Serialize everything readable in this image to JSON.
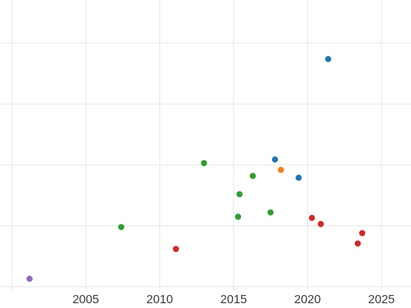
{
  "chart_data": {
    "type": "scatter",
    "title": "",
    "xlabel": "",
    "ylabel": "",
    "background": "#ffffff",
    "grid": true,
    "grid_color": "#e3e3e3",
    "axis_tick_color": "#3d3d3d",
    "legend": "none",
    "x_ticks": [
      2005,
      2010,
      2015,
      2020,
      2025
    ],
    "x_tick_labels": [
      "2005",
      "2010",
      "2015",
      "2020",
      "2025"
    ],
    "x_gridlines": [
      2000,
      2005,
      2010,
      2015,
      2020,
      2025
    ],
    "xlim": [
      1999.2,
      2027.0
    ],
    "y_gridlines": [
      1,
      2,
      3,
      4,
      5
    ],
    "ylim": [
      0.65,
      5.71
    ],
    "y_units": "unlabeled-gridline-units (y tick labels not visible in image)",
    "marker_radius": 4.5,
    "series": [
      {
        "name": "blue-series",
        "color": "#1f77b4",
        "points": [
          {
            "x": 2017.8,
            "y": 3.09
          },
          {
            "x": 2019.4,
            "y": 2.79
          },
          {
            "x": 2021.4,
            "y": 4.74
          }
        ]
      },
      {
        "name": "orange-series",
        "color": "#ff7f0e",
        "points": [
          {
            "x": 2018.2,
            "y": 2.92
          }
        ]
      },
      {
        "name": "green-series",
        "color": "#2ca02c",
        "points": [
          {
            "x": 2007.4,
            "y": 1.98
          },
          {
            "x": 2013.0,
            "y": 3.03
          },
          {
            "x": 2015.3,
            "y": 2.15
          },
          {
            "x": 2015.4,
            "y": 2.52
          },
          {
            "x": 2016.3,
            "y": 2.82
          },
          {
            "x": 2017.5,
            "y": 2.22
          }
        ]
      },
      {
        "name": "red-series",
        "color": "#d62728",
        "points": [
          {
            "x": 2011.1,
            "y": 1.62
          },
          {
            "x": 2020.3,
            "y": 2.13
          },
          {
            "x": 2020.9,
            "y": 2.03
          },
          {
            "x": 2023.4,
            "y": 1.71
          },
          {
            "x": 2023.7,
            "y": 1.88
          }
        ]
      },
      {
        "name": "purple-series",
        "color": "#9467bd",
        "points": [
          {
            "x": 2001.2,
            "y": 1.13
          }
        ]
      }
    ]
  }
}
